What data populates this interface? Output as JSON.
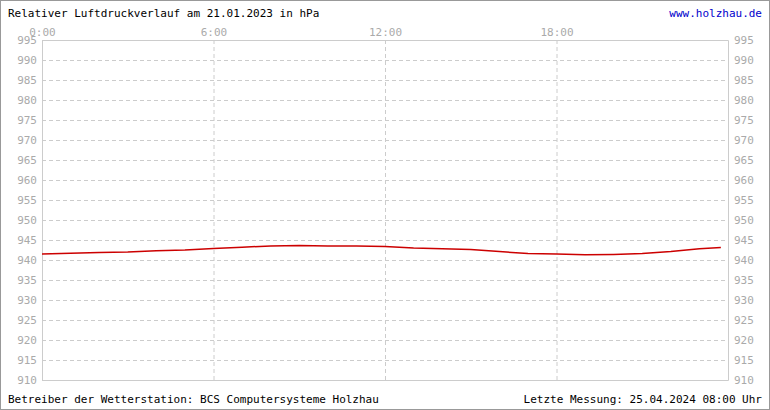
{
  "chart_data": {
    "type": "line",
    "title": "Relativer Luftdruckverlauf am 21.01.2023 in hPa",
    "annotations": [
      "www.holzhau.de",
      "Betreiber der Wetterstation: BCS Computersysteme Holzhau",
      "Letzte Messung: 25.04.2024 08:00 Uhr"
    ],
    "x": [
      0,
      1,
      2,
      3,
      4,
      5,
      6,
      7,
      8,
      9,
      10,
      11,
      12,
      13,
      14,
      15,
      16,
      17,
      18,
      19,
      20,
      21,
      22,
      23,
      23.75
    ],
    "values": [
      941.5,
      941.7,
      941.9,
      942.0,
      942.3,
      942.5,
      942.9,
      943.2,
      943.5,
      943.6,
      943.5,
      943.5,
      943.4,
      943.0,
      942.8,
      942.6,
      942.1,
      941.6,
      941.5,
      941.3,
      941.4,
      941.6,
      942.1,
      942.8,
      943.1
    ],
    "color": "#cc0000",
    "xlim": [
      0,
      24
    ],
    "xticks": [
      {
        "value": 0,
        "label": "0:00"
      },
      {
        "value": 6,
        "label": "6:00"
      },
      {
        "value": 12,
        "label": "12:00"
      },
      {
        "value": 18,
        "label": "18:00"
      }
    ],
    "ylim": [
      910,
      995
    ],
    "yticks": [
      910,
      915,
      920,
      925,
      930,
      935,
      940,
      945,
      950,
      955,
      960,
      965,
      970,
      975,
      980,
      985,
      990,
      995
    ],
    "grid": true
  }
}
